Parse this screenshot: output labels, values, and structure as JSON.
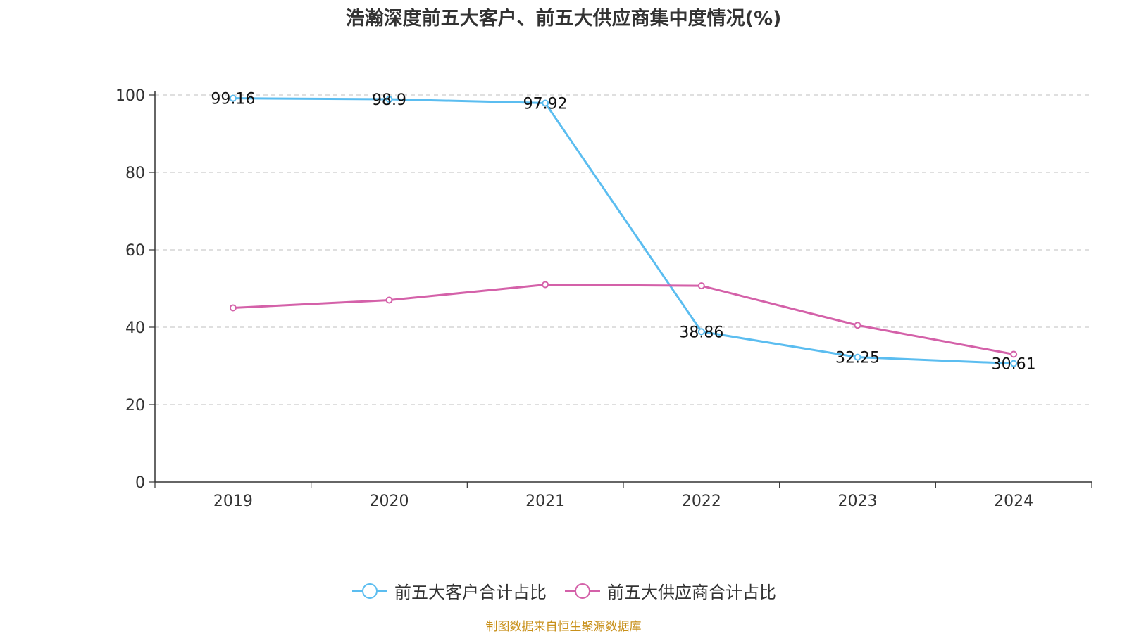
{
  "title": "浩瀚深度前五大客户、前五大供应商集中度情况(%)",
  "source_note": "制图数据来自恒生聚源数据库",
  "colors": {
    "customers": "#5bbdf0",
    "suppliers": "#d461a9",
    "grid": "#cccccc",
    "axis": "#333333",
    "source": "#c8901a"
  },
  "chart_data": {
    "type": "line",
    "title": "浩瀚深度前五大客户、前五大供应商集中度情况(%)",
    "categories": [
      "2019",
      "2020",
      "2021",
      "2022",
      "2023",
      "2024"
    ],
    "ylim": [
      0,
      100
    ],
    "yticks": [
      0,
      20,
      40,
      60,
      80,
      100
    ],
    "grid": true,
    "legend_position": "bottom",
    "series": [
      {
        "name": "前五大客户合计占比",
        "values": [
          99.16,
          98.9,
          97.92,
          38.86,
          32.25,
          30.61
        ],
        "labels": [
          "99.16",
          "98.9",
          "97.92",
          "38.86",
          "32.25",
          "30.61"
        ],
        "color": "#5bbdf0"
      },
      {
        "name": "前五大供应商合计占比",
        "values": [
          45.0,
          47.0,
          51.0,
          50.7,
          40.5,
          33.0
        ],
        "color": "#d461a9"
      }
    ]
  }
}
